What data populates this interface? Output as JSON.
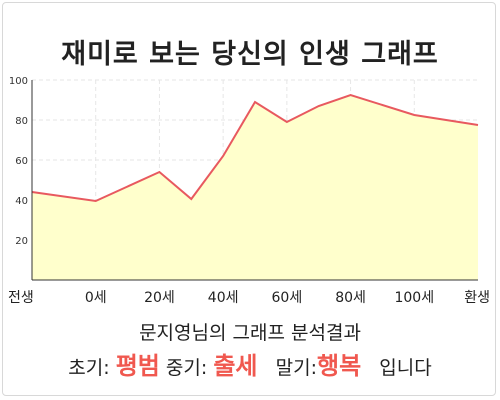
{
  "title": "재미로 보는 당신의 인생 그래프",
  "chart_data": {
    "type": "area",
    "x_tick_labels": [
      "전생",
      "0세",
      "20세",
      "40세",
      "60세",
      "80세",
      "100세",
      "환생"
    ],
    "y_ticks": [
      20,
      40,
      60,
      80,
      100
    ],
    "ylim": [
      0,
      100
    ],
    "points": [
      {
        "x": 0,
        "y": 44
      },
      {
        "x": 1,
        "y": 39.5
      },
      {
        "x": 2,
        "y": 54
      },
      {
        "x": 2.5,
        "y": 40.5
      },
      {
        "x": 3,
        "y": 62
      },
      {
        "x": 3.5,
        "y": 89
      },
      {
        "x": 4,
        "y": 79
      },
      {
        "x": 4.5,
        "y": 87
      },
      {
        "x": 5,
        "y": 92.5
      },
      {
        "x": 6,
        "y": 82.5
      },
      {
        "x": 7,
        "y": 77.5
      }
    ],
    "grid": true,
    "colors": {
      "line": "#e8595f",
      "fill": "#ffffcc",
      "grid": "#e6e6e6"
    }
  },
  "result": {
    "subtitle": "문지영님의 그래프 분석결과",
    "early_label": "초기:",
    "early_value": "평범",
    "mid_label": "중기:",
    "mid_value": "출세",
    "late_label": "말기:",
    "late_value": "행복",
    "ending": "입니다"
  }
}
